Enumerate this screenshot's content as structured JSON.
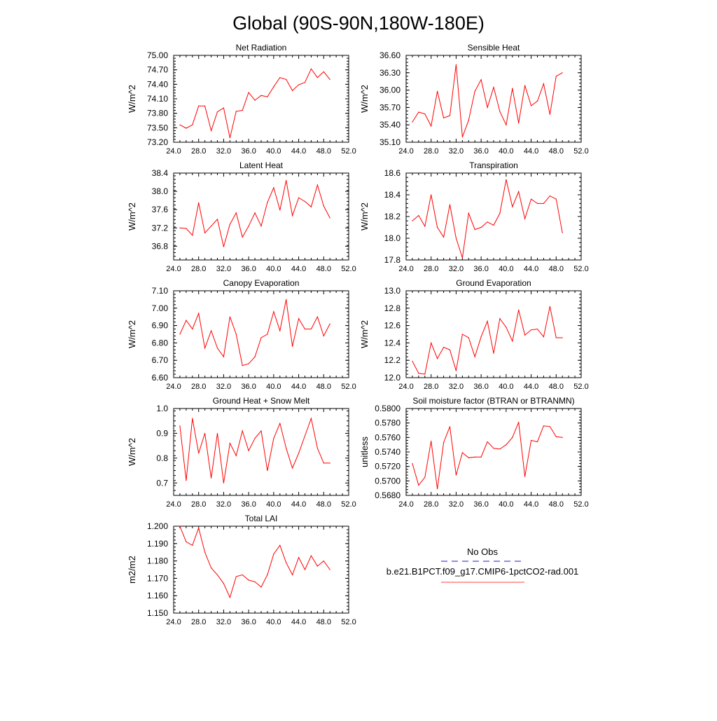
{
  "page_title": "Global (90S-90N,180W-180E)",
  "legend": {
    "items": [
      {
        "label": "No Obs",
        "color": "#2020c0",
        "dash": true
      },
      {
        "label": "b.e21.B1PCT.f09_g17.CMIP6-1pctCO2-rad.001",
        "color": "#ff4040",
        "dash": false
      }
    ]
  },
  "chart_data": [
    {
      "type": "line",
      "title": "Net Radiation",
      "ylabel": "W/m^2",
      "xlim": [
        24,
        52
      ],
      "ylim": [
        73.2,
        75.0
      ],
      "xticks": [
        "24.0",
        "28.0",
        "32.0",
        "36.0",
        "40.0",
        "44.0",
        "48.0",
        "52.0"
      ],
      "yticks": [
        "73.20",
        "73.50",
        "73.80",
        "74.10",
        "74.40",
        "74.70",
        "75.00"
      ],
      "series": [
        {
          "color": "#ff0000",
          "x": [
            25,
            26,
            27,
            28,
            29,
            30,
            31,
            32,
            33,
            34,
            35,
            36,
            37,
            38,
            39,
            40,
            41,
            42,
            43,
            44,
            45,
            46,
            47,
            48,
            49
          ],
          "y": [
            73.56,
            73.49,
            73.56,
            73.95,
            73.95,
            73.44,
            73.83,
            73.91,
            73.29,
            73.84,
            73.86,
            74.23,
            74.07,
            74.17,
            74.14,
            74.35,
            74.54,
            74.5,
            74.27,
            74.39,
            74.44,
            74.72,
            74.54,
            74.66,
            74.5
          ]
        }
      ]
    },
    {
      "type": "line",
      "title": "Sensible Heat",
      "ylabel": "W/m^2",
      "xlim": [
        24,
        52
      ],
      "ylim": [
        35.1,
        36.6
      ],
      "xticks": [
        "24.0",
        "28.0",
        "32.0",
        "36.0",
        "40.0",
        "44.0",
        "48.0",
        "52.0"
      ],
      "yticks": [
        "35.10",
        "35.40",
        "35.70",
        "36.00",
        "36.30",
        "36.60"
      ],
      "series": [
        {
          "color": "#ff0000",
          "x": [
            25,
            26,
            27,
            28,
            29,
            30,
            31,
            32,
            33,
            34,
            35,
            36,
            37,
            38,
            39,
            40,
            41,
            42,
            43,
            44,
            45,
            46,
            47,
            48,
            49
          ],
          "y": [
            35.45,
            35.62,
            35.59,
            35.38,
            35.98,
            35.52,
            35.56,
            36.44,
            35.19,
            35.48,
            35.98,
            36.18,
            35.7,
            36.05,
            35.63,
            35.4,
            36.03,
            35.43,
            36.08,
            35.73,
            35.81,
            36.11,
            35.58,
            36.24,
            36.3
          ]
        }
      ]
    },
    {
      "type": "line",
      "title": "Latent Heat",
      "ylabel": "W/m^2",
      "xlim": [
        24,
        52
      ],
      "ylim": [
        36.5,
        38.4
      ],
      "xticks": [
        "24.0",
        "28.0",
        "32.0",
        "36.0",
        "40.0",
        "44.0",
        "48.0",
        "52.0"
      ],
      "yticks": [
        "36.8",
        "37.2",
        "37.6",
        "38.0",
        "38.4"
      ],
      "series": [
        {
          "color": "#ff0000",
          "x": [
            25,
            26,
            27,
            28,
            29,
            30,
            31,
            32,
            33,
            34,
            35,
            36,
            37,
            38,
            39,
            40,
            41,
            42,
            43,
            44,
            45,
            46,
            47,
            48,
            49
          ],
          "y": [
            37.2,
            37.19,
            37.04,
            37.75,
            37.09,
            37.24,
            37.39,
            36.79,
            37.28,
            37.53,
            37.0,
            37.24,
            37.53,
            37.24,
            37.76,
            38.08,
            37.59,
            38.24,
            37.47,
            37.86,
            37.78,
            37.66,
            38.14,
            37.68,
            37.42
          ]
        }
      ]
    },
    {
      "type": "line",
      "title": "Transpiration",
      "ylabel": "W/m^2",
      "xlim": [
        24,
        52
      ],
      "ylim": [
        17.8,
        18.6
      ],
      "xticks": [
        "24.0",
        "28.0",
        "32.0",
        "36.0",
        "40.0",
        "44.0",
        "48.0",
        "52.0"
      ],
      "yticks": [
        "17.8",
        "18.0",
        "18.2",
        "18.4",
        "18.6"
      ],
      "series": [
        {
          "color": "#ff0000",
          "x": [
            25,
            26,
            27,
            28,
            29,
            30,
            31,
            32,
            33,
            34,
            35,
            36,
            37,
            38,
            39,
            40,
            41,
            42,
            43,
            44,
            45,
            46,
            47,
            48,
            49
          ],
          "y": [
            18.16,
            18.21,
            18.11,
            18.4,
            18.1,
            18.01,
            18.31,
            18.0,
            17.82,
            18.23,
            18.08,
            18.1,
            18.15,
            18.12,
            18.23,
            18.54,
            18.29,
            18.43,
            18.18,
            18.36,
            18.32,
            18.32,
            18.39,
            18.36,
            18.05
          ]
        }
      ]
    },
    {
      "type": "line",
      "title": "Canopy Evaporation",
      "ylabel": "W/m^2",
      "xlim": [
        24,
        52
      ],
      "ylim": [
        6.6,
        7.1
      ],
      "xticks": [
        "24.0",
        "28.0",
        "32.0",
        "36.0",
        "40.0",
        "44.0",
        "48.0",
        "52.0"
      ],
      "yticks": [
        "6.60",
        "6.70",
        "6.80",
        "6.90",
        "7.00",
        "7.10"
      ],
      "series": [
        {
          "color": "#ff0000",
          "x": [
            25,
            26,
            27,
            28,
            29,
            30,
            31,
            32,
            33,
            34,
            35,
            36,
            37,
            38,
            39,
            40,
            41,
            42,
            43,
            44,
            45,
            46,
            47,
            48,
            49
          ],
          "y": [
            6.85,
            6.93,
            6.88,
            6.97,
            6.77,
            6.87,
            6.77,
            6.72,
            6.95,
            6.85,
            6.67,
            6.68,
            6.72,
            6.83,
            6.85,
            6.98,
            6.87,
            7.05,
            6.78,
            6.94,
            6.88,
            6.88,
            6.95,
            6.84,
            6.91
          ]
        }
      ]
    },
    {
      "type": "line",
      "title": "Ground Evaporation",
      "ylabel": "W/m^2",
      "xlim": [
        24,
        52
      ],
      "ylim": [
        12.0,
        13.0
      ],
      "xticks": [
        "24.0",
        "28.0",
        "32.0",
        "36.0",
        "40.0",
        "44.0",
        "48.0",
        "52.0"
      ],
      "yticks": [
        "12.0",
        "12.2",
        "12.4",
        "12.6",
        "12.8",
        "13.0"
      ],
      "series": [
        {
          "color": "#ff0000",
          "x": [
            25,
            26,
            27,
            28,
            29,
            30,
            31,
            32,
            33,
            34,
            35,
            36,
            37,
            38,
            39,
            40,
            41,
            42,
            43,
            44,
            45,
            46,
            47,
            48,
            49
          ],
          "y": [
            12.19,
            12.05,
            12.04,
            12.4,
            12.22,
            12.35,
            12.32,
            12.08,
            12.5,
            12.46,
            12.24,
            12.47,
            12.65,
            12.28,
            12.68,
            12.58,
            12.42,
            12.78,
            12.49,
            12.55,
            12.56,
            12.47,
            12.82,
            12.46,
            12.46
          ]
        }
      ]
    },
    {
      "type": "line",
      "title": "Ground Heat + Snow Melt",
      "ylabel": "W/m^2",
      "xlim": [
        24,
        52
      ],
      "ylim": [
        0.65,
        1.0
      ],
      "xticks": [
        "24.0",
        "28.0",
        "32.0",
        "36.0",
        "40.0",
        "44.0",
        "48.0",
        "52.0"
      ],
      "yticks": [
        "0.7",
        "0.8",
        "0.9",
        "1.0"
      ],
      "series": [
        {
          "color": "#ff0000",
          "x": [
            25,
            26,
            27,
            28,
            29,
            30,
            31,
            32,
            33,
            34,
            35,
            36,
            37,
            38,
            39,
            40,
            41,
            42,
            43,
            44,
            45,
            46,
            47,
            48,
            49
          ],
          "y": [
            0.93,
            0.71,
            0.96,
            0.82,
            0.9,
            0.72,
            0.9,
            0.7,
            0.86,
            0.81,
            0.91,
            0.83,
            0.88,
            0.91,
            0.75,
            0.88,
            0.94,
            0.84,
            0.76,
            0.82,
            0.89,
            0.96,
            0.84,
            0.78,
            0.78
          ]
        }
      ]
    },
    {
      "type": "line",
      "title": "Soil moisture factor (BTRAN or BTRANMN)",
      "ylabel": "unitless",
      "xlim": [
        24,
        52
      ],
      "ylim": [
        0.568,
        0.58
      ],
      "xticks": [
        "24.0",
        "28.0",
        "32.0",
        "36.0",
        "40.0",
        "44.0",
        "48.0",
        "52.0"
      ],
      "yticks": [
        "0.5680",
        "0.5700",
        "0.5720",
        "0.5740",
        "0.5760",
        "0.5780",
        "0.5800"
      ],
      "series": [
        {
          "color": "#ff0000",
          "x": [
            25,
            26,
            27,
            28,
            29,
            30,
            31,
            32,
            33,
            34,
            35,
            36,
            37,
            38,
            39,
            40,
            41,
            42,
            43,
            44,
            45,
            46,
            47,
            48,
            49
          ],
          "y": [
            0.5724,
            0.5694,
            0.5705,
            0.5755,
            0.5689,
            0.5753,
            0.5775,
            0.5708,
            0.5739,
            0.5732,
            0.5733,
            0.5733,
            0.5754,
            0.5745,
            0.5744,
            0.575,
            0.576,
            0.5781,
            0.5706,
            0.5756,
            0.5754,
            0.5776,
            0.5775,
            0.5761,
            0.576
          ]
        }
      ]
    },
    {
      "type": "line",
      "title": "Total LAI",
      "ylabel": "m2/m2",
      "xlim": [
        24,
        52
      ],
      "ylim": [
        1.15,
        1.2
      ],
      "xticks": [
        "24.0",
        "28.0",
        "32.0",
        "36.0",
        "40.0",
        "44.0",
        "48.0",
        "52.0"
      ],
      "yticks": [
        "1.150",
        "1.160",
        "1.170",
        "1.180",
        "1.190",
        "1.200"
      ],
      "series": [
        {
          "color": "#ff0000",
          "x": [
            25,
            26,
            27,
            28,
            29,
            30,
            31,
            32,
            33,
            34,
            35,
            36,
            37,
            38,
            39,
            40,
            41,
            42,
            43,
            44,
            45,
            46,
            47,
            48,
            49
          ],
          "y": [
            1.2,
            1.191,
            1.189,
            1.199,
            1.185,
            1.176,
            1.172,
            1.167,
            1.159,
            1.171,
            1.172,
            1.169,
            1.168,
            1.165,
            1.172,
            1.184,
            1.189,
            1.179,
            1.172,
            1.182,
            1.175,
            1.183,
            1.177,
            1.18,
            1.175
          ]
        }
      ]
    }
  ]
}
